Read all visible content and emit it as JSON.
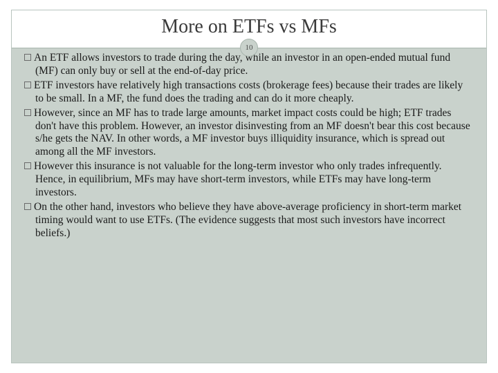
{
  "slide": {
    "title": "More on ETFs vs MFs",
    "page_number": "10",
    "bullets": [
      "An ETF allows investors to trade during the day, while an investor in an open-ended mutual fund (MF) can only buy or sell at the end-of-day price.",
      "ETF investors have relatively high transactions costs (brokerage fees) because their trades are likely to be small.  In a MF, the fund does the trading and can do it more cheaply.",
      "However, since an MF has to trade large amounts, market impact costs could be high; ETF trades don't have this problem.  However, an investor disinvesting from an MF doesn't bear this cost because s/he gets the NAV.  In other words, a MF investor buys illiquidity insurance, which is spread out among all the MF investors.",
      "However this insurance is not valuable for the long-term investor who only trades infrequently.  Hence, in equilibrium, MFs may have short-term investors, while ETFs may have long-term investors.",
      "On the other hand, investors who believe they have above-average proficiency in short-term market timing would want to use ETFs.  (The evidence suggests that most such investors have incorrect beliefs.)"
    ]
  },
  "styling": {
    "slide_width": 720,
    "slide_height": 540,
    "background_color": "#ffffff",
    "frame_background": "#c9d2cc",
    "frame_border_color": "#b8c4be",
    "divider_color": "#a8b5ad",
    "title_color": "#3a3a3a",
    "title_fontsize": 28,
    "body_fontsize": 15.5,
    "body_color": "#1a1a1a",
    "bullet_marker": "hollow-square",
    "font_family": "Georgia, serif",
    "badge_size": 26,
    "badge_fontsize": 11
  }
}
